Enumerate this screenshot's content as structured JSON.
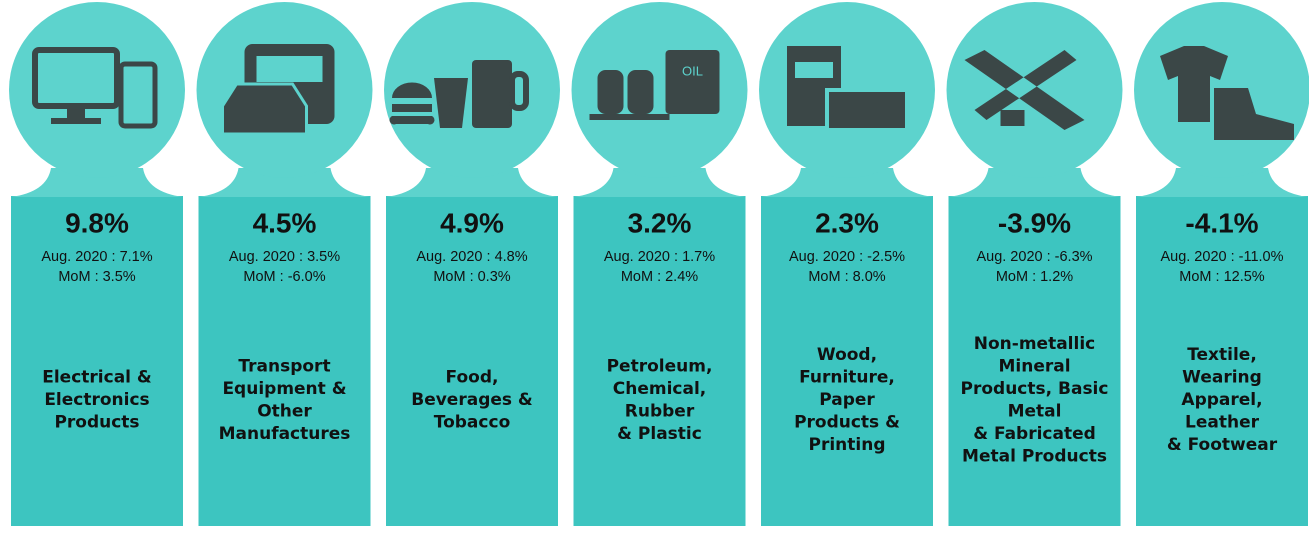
{
  "cards": [
    {
      "value": "9.8%",
      "aug": "Aug. 2020 : 7.1%",
      "mom": "MoM : 3.5%",
      "label": [
        "Electrical &",
        "Electronics",
        "Products"
      ]
    },
    {
      "value": "4.5%",
      "aug": "Aug. 2020 : 3.5%",
      "mom": "MoM : -6.0%",
      "label": [
        "Transport",
        "Equipment &",
        "Other",
        "Manufactures"
      ]
    },
    {
      "value": "4.9%",
      "aug": "Aug. 2020 : 4.8%",
      "mom": "MoM : 0.3%",
      "label": [
        "Food,",
        "Beverages &",
        "Tobacco"
      ]
    },
    {
      "value": "3.2%",
      "aug": "Aug. 2020 : 1.7%",
      "mom": "MoM : 2.4%",
      "label": [
        "Petroleum,",
        "Chemical,",
        "Rubber",
        "& Plastic"
      ]
    },
    {
      "value": "2.3%",
      "aug": "Aug. 2020 : -2.5%",
      "mom": "MoM : 8.0%",
      "label": [
        "Wood,",
        "Furniture,",
        "Paper",
        "Products &",
        "Printing"
      ]
    },
    {
      "value": "-3.9%",
      "aug": "Aug. 2020 : -6.3%",
      "mom": "MoM : 1.2%",
      "label": [
        "Non-metallic",
        "Mineral",
        "Products, Basic",
        "Metal",
        "& Fabricated",
        "Metal Products"
      ]
    },
    {
      "value": "-4.1%",
      "aug": "Aug. 2020 : -11.0%",
      "mom": "MoM : 12.5%",
      "label": [
        "Textile,",
        "Wearing",
        "Apparel,",
        "Leather",
        "& Footwear"
      ]
    }
  ],
  "icon_text": "OIL"
}
